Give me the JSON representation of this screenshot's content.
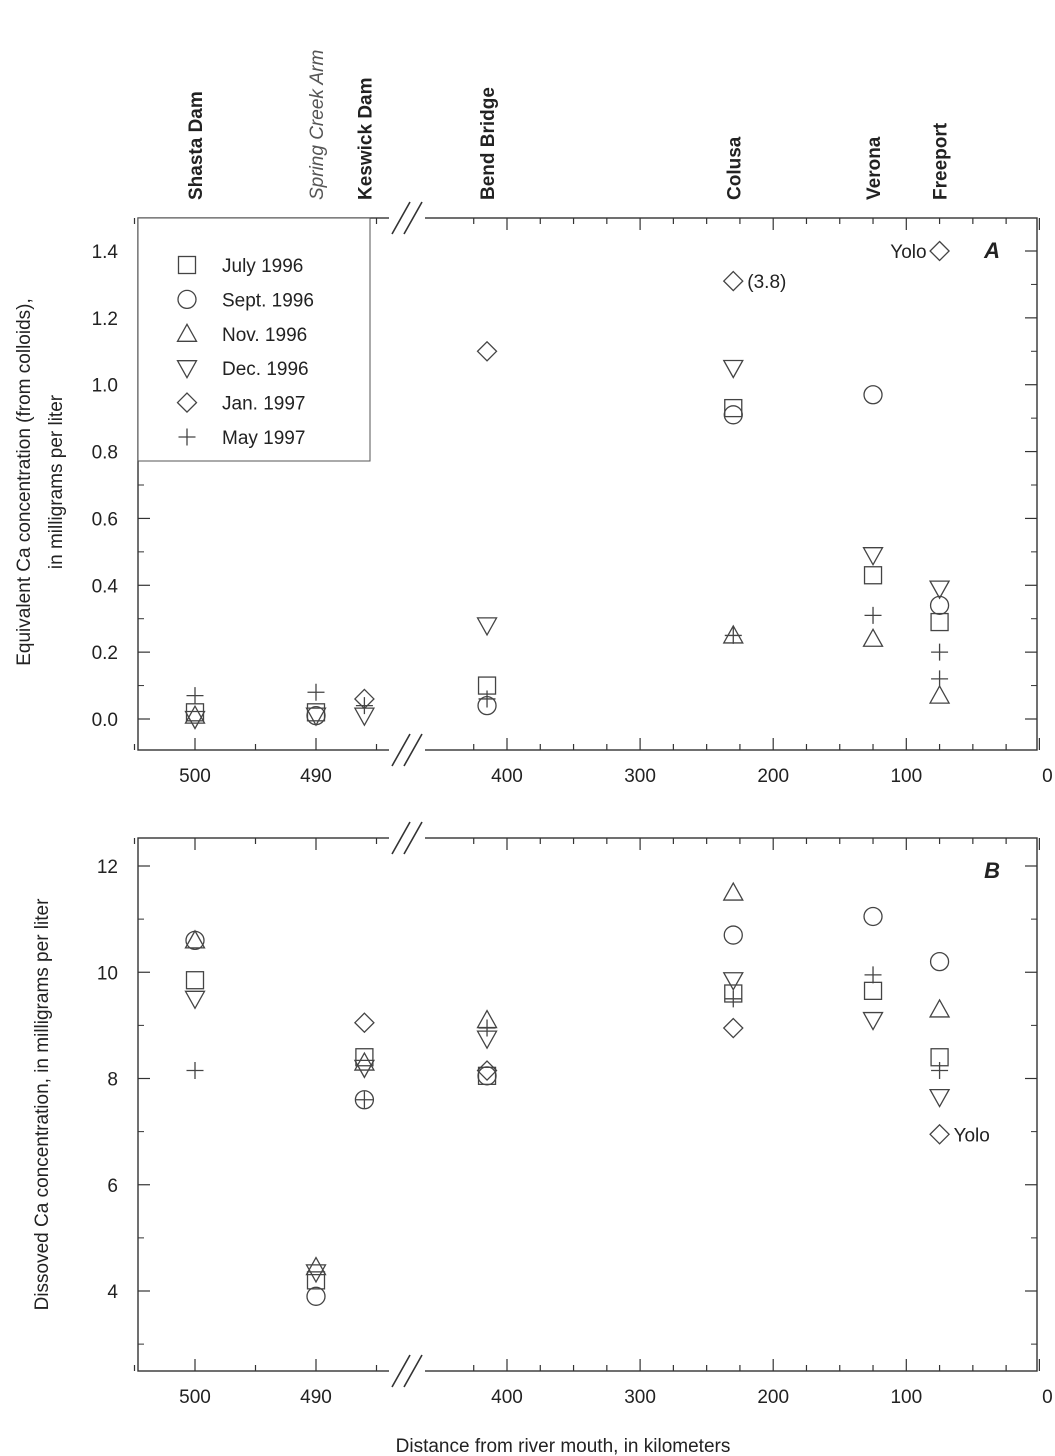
{
  "chart_data": [
    {
      "type": "scatter",
      "panel": "A",
      "ylabel": "Equivalent Ca concentration (from colloids), in milligrams per liter",
      "xlabel": "",
      "y_ticks": [
        "0.0",
        "0.2",
        "0.4",
        "0.6",
        "0.8",
        "1.0",
        "1.2",
        "1.4"
      ],
      "ylim": [
        -0.08,
        1.5
      ],
      "x_axis": "broken; left segment 505–482 km, right segment 450–0 km",
      "x_ticks_left": [
        "500",
        "490"
      ],
      "x_ticks_right": [
        "400",
        "300",
        "200",
        "100",
        "0"
      ],
      "sites": [
        {
          "name": "Shasta Dam",
          "x": 500,
          "italic": false
        },
        {
          "name": "Spring Creek Arm",
          "x": 490,
          "italic": true
        },
        {
          "name": "Keswick Dam",
          "x": 486,
          "italic": false
        },
        {
          "name": "Bend Bridge",
          "x": 415,
          "italic": false
        },
        {
          "name": "Colusa",
          "x": 230,
          "italic": false
        },
        {
          "name": "Verona",
          "x": 125,
          "italic": false
        },
        {
          "name": "Freeport",
          "x": 75,
          "italic": false
        }
      ],
      "legend_placement": "top-left",
      "series": [
        {
          "name": "July 1996",
          "marker": "square",
          "points": [
            [
              500,
              0.02
            ],
            [
              490,
              0.02
            ],
            [
              415,
              0.1
            ],
            [
              230,
              0.93
            ],
            [
              125,
              0.43
            ],
            [
              75,
              0.29
            ]
          ]
        },
        {
          "name": "Sept. 1996",
          "marker": "circle",
          "points": [
            [
              490,
              0.01
            ],
            [
              415,
              0.04
            ],
            [
              230,
              0.91
            ],
            [
              125,
              0.97
            ],
            [
              75,
              0.34
            ]
          ]
        },
        {
          "name": "Nov. 1996",
          "marker": "triangle-up",
          "points": [
            [
              500,
              0.01
            ],
            [
              230,
              0.25
            ],
            [
              125,
              0.24
            ],
            [
              75,
              0.07
            ]
          ]
        },
        {
          "name": "Dec. 1996",
          "marker": "triangle-down",
          "points": [
            [
              500,
              0.0
            ],
            [
              490,
              0.01
            ],
            [
              486,
              0.01
            ],
            [
              415,
              0.28
            ],
            [
              230,
              1.05
            ],
            [
              125,
              0.49
            ],
            [
              75,
              0.39
            ]
          ]
        },
        {
          "name": "Jan. 1997",
          "marker": "diamond",
          "points": [
            [
              486,
              0.06
            ],
            [
              415,
              1.1
            ],
            [
              230,
              1.31
            ],
            [
              75,
              1.4
            ]
          ]
        },
        {
          "name": "May 1997",
          "marker": "plus",
          "points": [
            [
              500,
              0.07
            ],
            [
              490,
              0.08
            ],
            [
              486,
              0.04
            ],
            [
              415,
              0.06
            ],
            [
              230,
              0.25
            ],
            [
              125,
              0.31
            ],
            [
              75,
              0.2
            ],
            [
              75,
              0.12
            ]
          ]
        }
      ],
      "annotations": [
        {
          "text": "(3.8)",
          "x": 230,
          "y": 1.31
        },
        {
          "text": "Yolo",
          "x": 75,
          "y": 1.4
        }
      ]
    },
    {
      "type": "scatter",
      "panel": "B",
      "ylabel": "Dissoved Ca concentration, in milligrams per liter",
      "xlabel": "Distance from river mouth, in kilometers",
      "y_ticks": [
        "4",
        "6",
        "8",
        "10",
        "12"
      ],
      "ylim": [
        2.5,
        12.5
      ],
      "x_axis": "broken; left segment 505–482 km, right segment 450–0 km",
      "x_ticks_left": [
        "500",
        "490"
      ],
      "x_ticks_right": [
        "400",
        "300",
        "200",
        "100",
        "0"
      ],
      "series": [
        {
          "name": "July 1996",
          "marker": "square",
          "points": [
            [
              500,
              9.85
            ],
            [
              490,
              4.2
            ],
            [
              486,
              8.4
            ],
            [
              415,
              8.05
            ],
            [
              230,
              9.6
            ],
            [
              125,
              9.65
            ],
            [
              75,
              8.4
            ]
          ]
        },
        {
          "name": "Sept. 1996",
          "marker": "circle",
          "points": [
            [
              500,
              10.6
            ],
            [
              490,
              3.9
            ],
            [
              486,
              7.6
            ],
            [
              415,
              8.05
            ],
            [
              230,
              10.7
            ],
            [
              125,
              11.05
            ],
            [
              75,
              10.2
            ]
          ]
        },
        {
          "name": "Nov. 1996",
          "marker": "triangle-up",
          "points": [
            [
              500,
              10.6
            ],
            [
              490,
              4.45
            ],
            [
              486,
              8.3
            ],
            [
              415,
              9.1
            ],
            [
              230,
              11.5
            ],
            [
              75,
              9.3
            ]
          ]
        },
        {
          "name": "Dec. 1996",
          "marker": "triangle-down",
          "points": [
            [
              500,
              9.5
            ],
            [
              490,
              4.35
            ],
            [
              486,
              8.2
            ],
            [
              415,
              8.75
            ],
            [
              230,
              9.85
            ],
            [
              125,
              9.1
            ],
            [
              75,
              7.65
            ]
          ]
        },
        {
          "name": "Jan. 1997",
          "marker": "diamond",
          "points": [
            [
              486,
              9.05
            ],
            [
              415,
              8.15
            ],
            [
              230,
              8.95
            ],
            [
              75,
              6.95
            ]
          ]
        },
        {
          "name": "May 1997",
          "marker": "plus",
          "points": [
            [
              500,
              8.15
            ],
            [
              486,
              7.6
            ],
            [
              415,
              8.95
            ],
            [
              230,
              9.5
            ],
            [
              125,
              9.95
            ],
            [
              75,
              8.15
            ]
          ]
        }
      ],
      "annotations": [
        {
          "text": "Yolo",
          "x": 75,
          "y": 6.95
        }
      ]
    }
  ]
}
